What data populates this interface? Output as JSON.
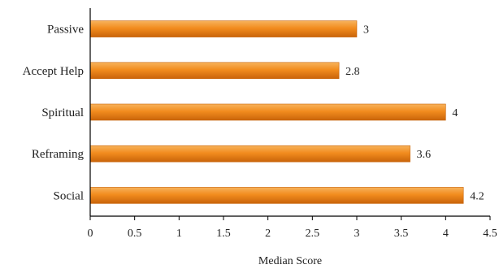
{
  "chart_data": {
    "type": "bar",
    "orientation": "horizontal",
    "categories": [
      "Passive",
      "Accept Help",
      "Spiritual",
      "Reframing",
      "Social"
    ],
    "values": [
      3,
      2.8,
      4,
      3.6,
      4.2
    ],
    "value_labels": [
      "3",
      "2.8",
      "4",
      "3.6",
      "4.2"
    ],
    "xlabel": "Median Score",
    "ylabel": "",
    "xlim": [
      0,
      4.5
    ],
    "xticks": [
      "0",
      "0.5",
      "1",
      "1.5",
      "2",
      "2.5",
      "3",
      "3.5",
      "4",
      "4.5"
    ],
    "grid": false,
    "legend": "none",
    "colors": {
      "bar_light": "#f7b35c",
      "bar_mid": "#f28c1e",
      "bar_dark": "#c9640a",
      "axis": "#000000"
    }
  }
}
